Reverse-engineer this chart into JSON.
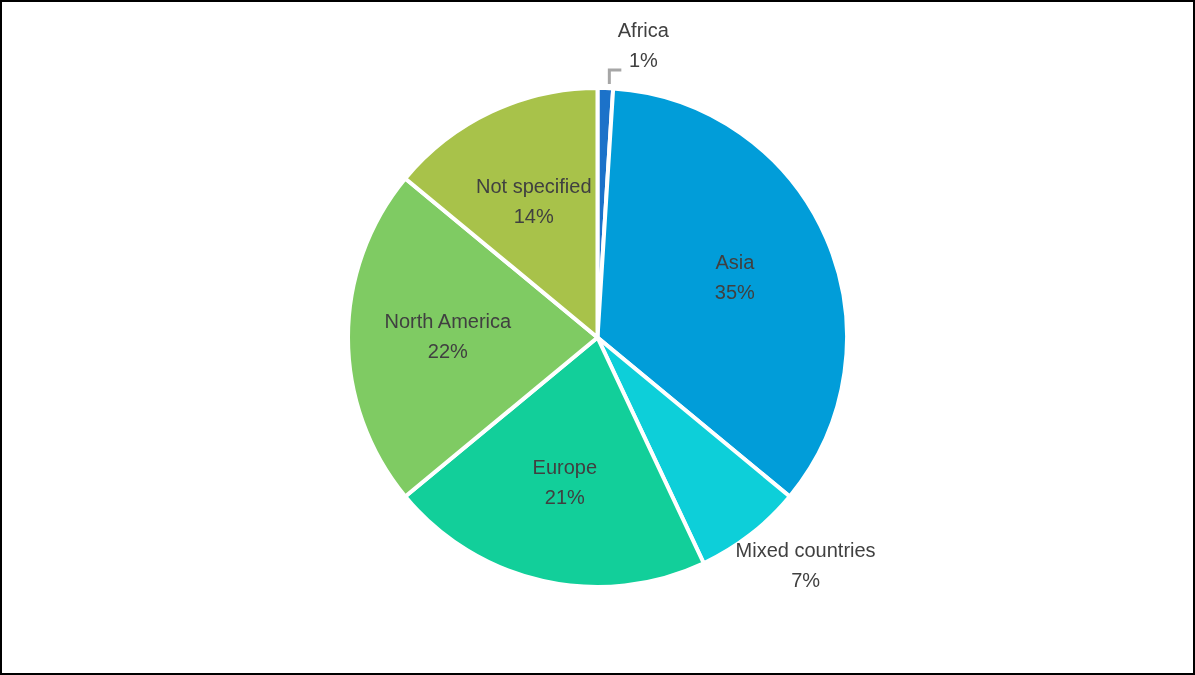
{
  "chart_data": {
    "type": "pie",
    "categories": [
      "Africa",
      "Asia",
      "Mixed countries",
      "Europe",
      "North America",
      "Not specified"
    ],
    "values": [
      1,
      35,
      7,
      21,
      22,
      14
    ],
    "colors": [
      "#1c72c9",
      "#019dd9",
      "#0dcfd9",
      "#12cf9a",
      "#7fcb63",
      "#a8c24a"
    ],
    "value_labels": [
      "1%",
      "35%",
      "7%",
      "21%",
      "22%",
      "14%"
    ],
    "legend": false
  }
}
